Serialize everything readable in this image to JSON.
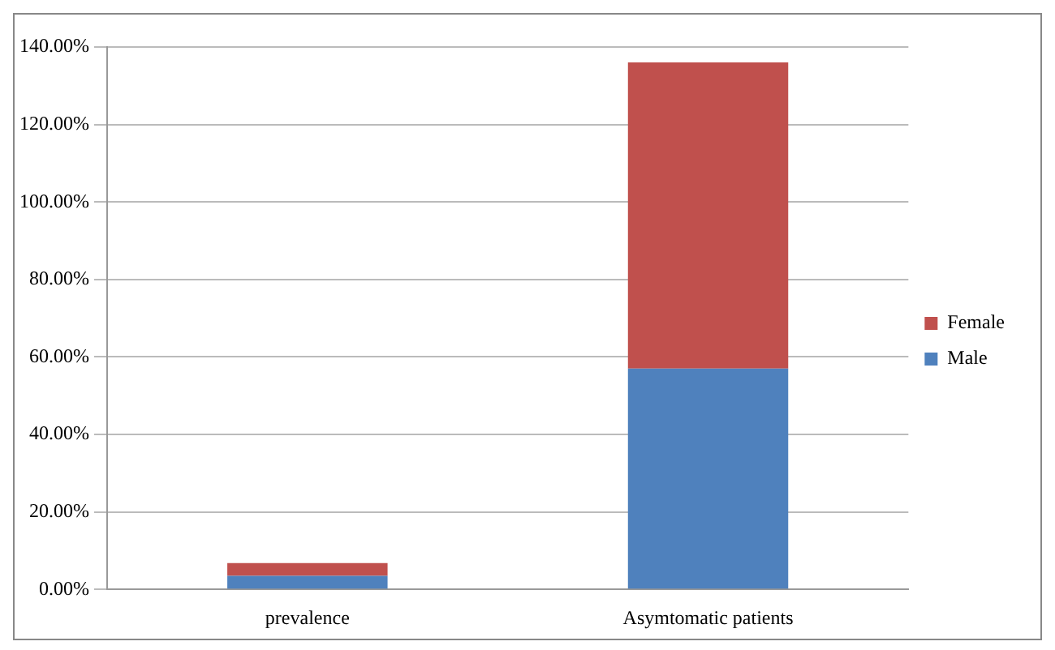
{
  "chart_data": {
    "type": "bar",
    "stacked": true,
    "categories": [
      "prevalence",
      "Asymtomatic patients"
    ],
    "series": [
      {
        "name": "Male",
        "color": "#4f81bd",
        "values": [
          3.5,
          57
        ]
      },
      {
        "name": "Female",
        "color": "#c0504d",
        "values": [
          3.3,
          79
        ]
      }
    ],
    "ylim": [
      0,
      140
    ],
    "yticks": [
      {
        "value": 0,
        "label": "0.00%"
      },
      {
        "value": 20,
        "label": "20.00%"
      },
      {
        "value": 40,
        "label": "40.00%"
      },
      {
        "value": 60,
        "label": "60.00%"
      },
      {
        "value": 80,
        "label": "80.00%"
      },
      {
        "value": 100,
        "label": "100.00%"
      },
      {
        "value": 120,
        "label": "120.00%"
      },
      {
        "value": 140,
        "label": "140.00%"
      }
    ],
    "grid": "y",
    "legend": "right"
  }
}
